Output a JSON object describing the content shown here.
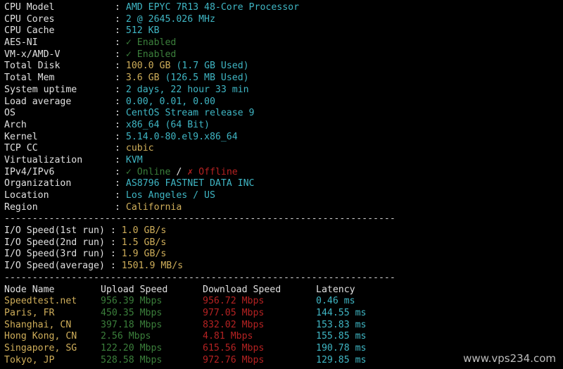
{
  "system_info": [
    {
      "label": "CPU Model",
      "value": "AMD EPYC 7R13 48-Core Processor",
      "color": "cyan"
    },
    {
      "label": "CPU Cores",
      "value": "2 @ 2645.026 MHz",
      "color": "cyan"
    },
    {
      "label": "CPU Cache",
      "value": "512 KB",
      "color": "cyan"
    },
    {
      "label": "AES-NI",
      "value": "✓ Enabled",
      "color": "green"
    },
    {
      "label": "VM-x/AMD-V",
      "value": "✓ Enabled",
      "color": "green"
    },
    {
      "label": "Total Disk",
      "value": "100.0 GB",
      "value2": "(1.7 GB Used)",
      "color": "yellow"
    },
    {
      "label": "Total Mem",
      "value": "3.6 GB",
      "value2": "(126.5 MB Used)",
      "color": "yellow"
    },
    {
      "label": "System uptime",
      "value": "2 days, 22 hour 33 min",
      "color": "cyan"
    },
    {
      "label": "Load average",
      "value": "0.00, 0.01, 0.00",
      "color": "cyan"
    },
    {
      "label": "OS",
      "value": "CentOS Stream release 9",
      "color": "cyan"
    },
    {
      "label": "Arch",
      "value": "x86_64 (64 Bit)",
      "color": "cyan"
    },
    {
      "label": "Kernel",
      "value": "5.14.0-80.el9.x86_64",
      "color": "cyan"
    },
    {
      "label": "TCP CC",
      "value": "cubic",
      "color": "yellow"
    },
    {
      "label": "Virtualization",
      "value": "KVM",
      "color": "cyan"
    },
    {
      "label": "IPv4/IPv6",
      "value": "✓ Online",
      "sep": " / ",
      "value2": "✗ Offline",
      "color": "green"
    },
    {
      "label": "Organization",
      "value": "AS8796 FASTNET DATA INC",
      "color": "cyan"
    },
    {
      "label": "Location",
      "value": "Los Angeles / US",
      "color": "cyan"
    },
    {
      "label": "Region",
      "value": "California",
      "color": "yellow"
    }
  ],
  "colon": ": ",
  "dashes": "----------------------------------------------------------------------",
  "io": [
    {
      "label": "I/O Speed(1st run)",
      "value": "1.0 GB/s"
    },
    {
      "label": "I/O Speed(2nd run)",
      "value": "1.5 GB/s"
    },
    {
      "label": "I/O Speed(3rd run)",
      "value": "1.9 GB/s"
    },
    {
      "label": "I/O Speed(average)",
      "value": "1501.9 MB/s"
    }
  ],
  "speed_headers": [
    "Node Name",
    "Upload Speed",
    "Download Speed",
    "Latency"
  ],
  "speed_rows": [
    [
      "Speedtest.net",
      "956.39 Mbps",
      "956.72 Mbps",
      "0.46 ms"
    ],
    [
      "Paris, FR",
      "450.35 Mbps",
      "977.05 Mbps",
      "144.55 ms"
    ],
    [
      "Shanghai, CN",
      "397.18 Mbps",
      "832.02 Mbps",
      "153.83 ms"
    ],
    [
      "Hong Kong, CN",
      "2.56 Mbps",
      "4.81 Mbps",
      "155.85 ms"
    ],
    [
      "Singapore, SG",
      "122.20 Mbps",
      "615.56 Mbps",
      "190.78 ms"
    ],
    [
      "Tokyo, JP",
      "528.58 Mbps",
      "972.76 Mbps",
      "129.85 ms"
    ]
  ],
  "watermark": "www.vps234.com",
  "colors": {
    "cyan": "#3fb6c4",
    "yellow": "#cfae5a",
    "green": "#3b7f3b",
    "red": "#b52222"
  }
}
